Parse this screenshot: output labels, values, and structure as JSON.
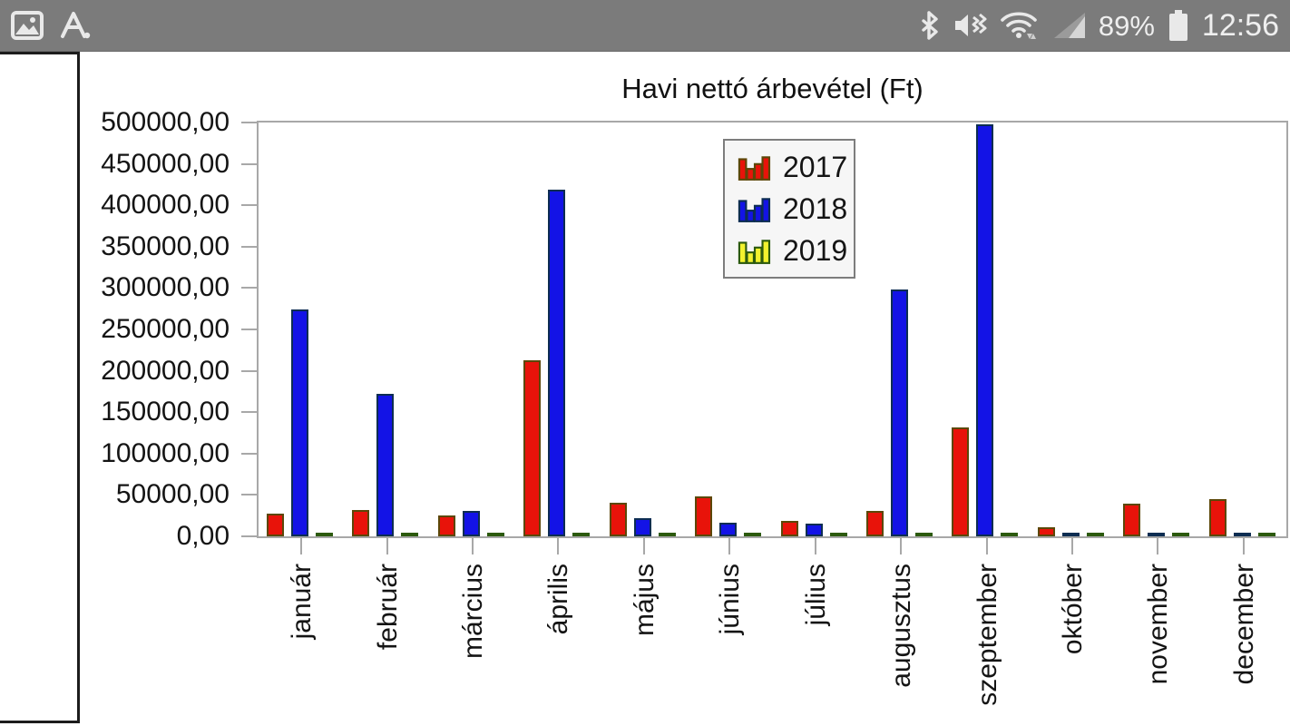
{
  "status_bar": {
    "left_icons": [
      "gallery-icon",
      "a-dot-icon"
    ],
    "right_icons": [
      "bluetooth-icon",
      "mute-vibrate-icon",
      "wifi-icon",
      "cell-signal-icon",
      "battery-icon"
    ],
    "battery_percent": "89%",
    "time": "12:56",
    "bg_color": "#7b7b7b"
  },
  "chart_data": {
    "type": "bar",
    "title": "Havi nettó árbevétel (Ft)",
    "categories": [
      "január",
      "február",
      "március",
      "április",
      "május",
      "június",
      "július",
      "augusztus",
      "szeptember",
      "október",
      "november",
      "december"
    ],
    "series": [
      {
        "name": "2017",
        "color": "#e8130a",
        "border": "#5c4708",
        "values": [
          27500,
          31500,
          25500,
          213000,
          41000,
          48000,
          18500,
          30500,
          132000,
          11000,
          39000,
          44500
        ]
      },
      {
        "name": "2018",
        "color": "#1313e6",
        "border": "#0d2d52",
        "values": [
          274000,
          172000,
          30500,
          419000,
          22000,
          16500,
          15000,
          298000,
          498000,
          2500,
          2500,
          2500
        ]
      },
      {
        "name": "2019",
        "color": "#f2f22e",
        "border": "#2c5a0e",
        "values": [
          2500,
          2500,
          2500,
          2500,
          2500,
          2500,
          2500,
          2500,
          2500,
          2500,
          2500,
          2500
        ]
      }
    ],
    "xlabel": "",
    "ylabel": "",
    "ylim": [
      0,
      500000
    ],
    "ytick_step": 50000,
    "ytick_labels": [
      "500000,00",
      "450000,00",
      "400000,00",
      "350000,00",
      "300000,00",
      "250000,00",
      "200000,00",
      "150000,00",
      "100000,00",
      "50000,00",
      "0,00"
    ],
    "grid": false,
    "legend_position": "upper-center",
    "legend_entries": [
      "2017",
      "2018",
      "2019"
    ]
  }
}
